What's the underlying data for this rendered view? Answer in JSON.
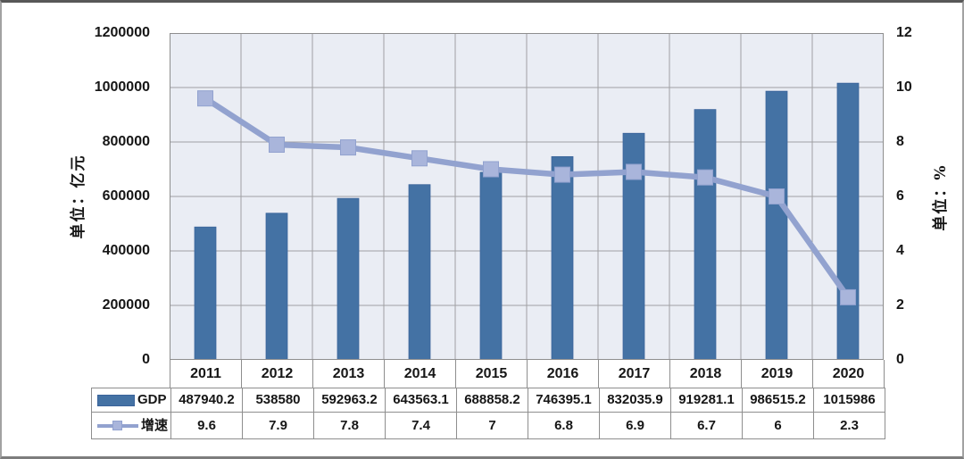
{
  "chart_data": {
    "type": "combo",
    "title": "",
    "categories": [
      "2011",
      "2012",
      "2013",
      "2014",
      "2015",
      "2016",
      "2017",
      "2018",
      "2019",
      "2020"
    ],
    "series": [
      {
        "name": "GDP",
        "type": "bar",
        "axis": "left",
        "values": [
          487940.2,
          538580,
          592963.2,
          643563.1,
          688858.2,
          746395.1,
          832035.9,
          919281.1,
          986515.2,
          1015986
        ]
      },
      {
        "name": "增速",
        "type": "line",
        "axis": "right",
        "values": [
          9.6,
          7.9,
          7.8,
          7.4,
          7,
          6.8,
          6.9,
          6.7,
          6,
          2.3
        ]
      }
    ],
    "left_axis": {
      "title": "单位：亿元",
      "min": 0,
      "max": 1200000,
      "step": 200000,
      "tick_labels": [
        "0",
        "200000",
        "400000",
        "600000",
        "800000",
        "1000000",
        "1200000"
      ]
    },
    "right_axis": {
      "title": "单位：%",
      "min": 0,
      "max": 12,
      "step": 2,
      "tick_labels": [
        "0",
        "2",
        "4",
        "6",
        "8",
        "10",
        "12"
      ]
    },
    "grid": true,
    "legend_position": "table-left"
  },
  "colors": {
    "bar_fill": "#4472a4",
    "bar_border": "#3a639a",
    "line": "#92a2cf",
    "marker_fill": "#a9b5db",
    "plot_bg": "#eaedf4",
    "grid": "#a0a0a3",
    "table_border": "#8e8e8e",
    "text": "#161616"
  }
}
